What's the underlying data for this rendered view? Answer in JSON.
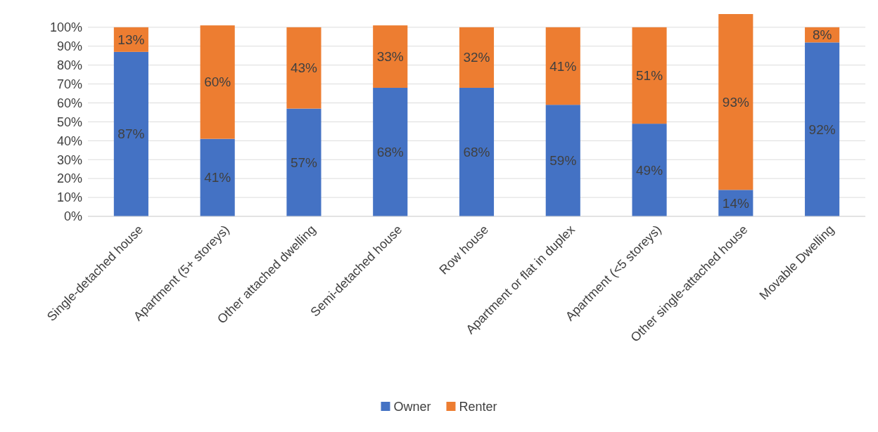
{
  "chart_data": {
    "type": "bar",
    "stacked": true,
    "categories": [
      "Single-detached house",
      "Apartment (5+ storeys)",
      "Other attached dwelling",
      "Semi-detached house",
      "Row house",
      "Apartment or flat in duplex",
      "Apartment (<5 storeys)",
      "Other single-attached house",
      "Movable Dwelling"
    ],
    "series": [
      {
        "name": "Owner",
        "color": "#4472c4",
        "values": [
          87,
          41,
          57,
          68,
          68,
          59,
          49,
          14,
          92
        ],
        "value_labels": [
          "87%",
          "41%",
          "57%",
          "68%",
          "68%",
          "59%",
          "49%",
          "14%",
          "92%"
        ]
      },
      {
        "name": "Renter",
        "color": "#ed7d31",
        "values": [
          13,
          60,
          43,
          33,
          32,
          41,
          51,
          93,
          8
        ],
        "value_labels": [
          "13%",
          "60%",
          "43%",
          "33%",
          "32%",
          "41%",
          "51%",
          "93%",
          "8%"
        ]
      }
    ],
    "ylim": [
      0,
      107
    ],
    "yticks": [
      {
        "value": 0,
        "label": "0%"
      },
      {
        "value": 10,
        "label": "10%"
      },
      {
        "value": 20,
        "label": "20%"
      },
      {
        "value": 30,
        "label": "30%"
      },
      {
        "value": 40,
        "label": "40%"
      },
      {
        "value": 50,
        "label": "50%"
      },
      {
        "value": 60,
        "label": "60%"
      },
      {
        "value": 70,
        "label": "70%"
      },
      {
        "value": 80,
        "label": "80%"
      },
      {
        "value": 90,
        "label": "90%"
      },
      {
        "value": 100,
        "label": "100%"
      }
    ],
    "grid": "y",
    "legend": "bottom"
  }
}
